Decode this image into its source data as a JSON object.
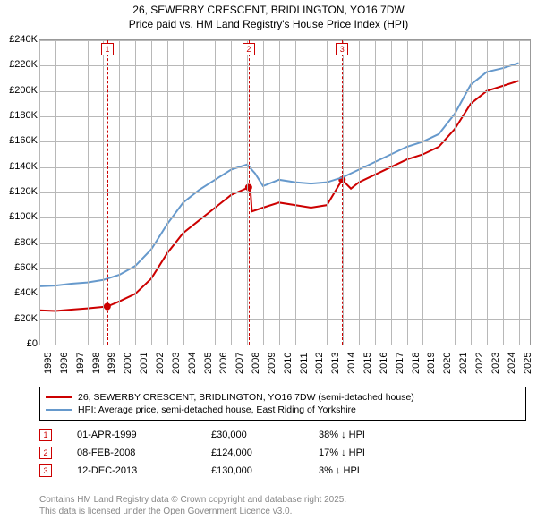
{
  "title": {
    "line1": "26, SEWERBY CRESCENT, BRIDLINGTON, YO16 7DW",
    "line2": "Price paid vs. HM Land Registry's House Price Index (HPI)",
    "fontsize": 12,
    "color": "#000000"
  },
  "chart": {
    "type": "line",
    "background_color": "#ffffff",
    "grid_color": "#b8b8b8",
    "ylim": [
      0,
      240000
    ],
    "ytick_step": 20000,
    "ytick_labels": [
      "£0",
      "£20K",
      "£40K",
      "£60K",
      "£80K",
      "£100K",
      "£120K",
      "£140K",
      "£160K",
      "£180K",
      "£200K",
      "£220K",
      "£240K"
    ],
    "x_years": [
      1995,
      1996,
      1997,
      1998,
      1999,
      2000,
      2001,
      2002,
      2003,
      2004,
      2005,
      2006,
      2007,
      2008,
      2009,
      2010,
      2011,
      2012,
      2013,
      2014,
      2015,
      2016,
      2017,
      2018,
      2019,
      2020,
      2021,
      2022,
      2023,
      2024,
      2025
    ],
    "series": [
      {
        "name": "price_paid",
        "label": "26, SEWERBY CRESCENT, BRIDLINGTON, YO16 7DW (semi-detached house)",
        "color": "#cc0000",
        "line_width": 2,
        "points": [
          [
            1995.0,
            27000
          ],
          [
            1996.0,
            26500
          ],
          [
            1997.0,
            27500
          ],
          [
            1998.0,
            28500
          ],
          [
            1999.25,
            30000
          ],
          [
            2000.0,
            34000
          ],
          [
            2001.0,
            40000
          ],
          [
            2002.0,
            52000
          ],
          [
            2003.0,
            72000
          ],
          [
            2004.0,
            88000
          ],
          [
            2005.0,
            98000
          ],
          [
            2006.0,
            108000
          ],
          [
            2007.0,
            118000
          ],
          [
            2008.1,
            124000
          ],
          [
            2008.2,
            124000
          ],
          [
            2008.3,
            105000
          ],
          [
            2009.0,
            108000
          ],
          [
            2010.0,
            112000
          ],
          [
            2011.0,
            110000
          ],
          [
            2012.0,
            108000
          ],
          [
            2013.0,
            110000
          ],
          [
            2013.95,
            130000
          ],
          [
            2014.5,
            123000
          ],
          [
            2015.0,
            128000
          ],
          [
            2016.0,
            134000
          ],
          [
            2017.0,
            140000
          ],
          [
            2018.0,
            146000
          ],
          [
            2019.0,
            150000
          ],
          [
            2020.0,
            156000
          ],
          [
            2021.0,
            170000
          ],
          [
            2022.0,
            190000
          ],
          [
            2023.0,
            200000
          ],
          [
            2024.0,
            204000
          ],
          [
            2025.0,
            208000
          ]
        ],
        "markers": [
          {
            "x": 1999.25,
            "y": 30000
          },
          {
            "x": 2008.1,
            "y": 124000
          },
          {
            "x": 2013.95,
            "y": 130000
          }
        ]
      },
      {
        "name": "hpi",
        "label": "HPI: Average price, semi-detached house, East Riding of Yorkshire",
        "color": "#6699cc",
        "line_width": 2,
        "points": [
          [
            1995.0,
            46000
          ],
          [
            1996.0,
            46500
          ],
          [
            1997.0,
            48000
          ],
          [
            1998.0,
            49000
          ],
          [
            1999.0,
            51000
          ],
          [
            2000.0,
            55000
          ],
          [
            2001.0,
            62000
          ],
          [
            2002.0,
            75000
          ],
          [
            2003.0,
            95000
          ],
          [
            2004.0,
            112000
          ],
          [
            2005.0,
            122000
          ],
          [
            2006.0,
            130000
          ],
          [
            2007.0,
            138000
          ],
          [
            2008.0,
            142000
          ],
          [
            2008.5,
            135000
          ],
          [
            2009.0,
            125000
          ],
          [
            2010.0,
            130000
          ],
          [
            2011.0,
            128000
          ],
          [
            2012.0,
            127000
          ],
          [
            2013.0,
            128000
          ],
          [
            2014.0,
            132000
          ],
          [
            2015.0,
            138000
          ],
          [
            2016.0,
            144000
          ],
          [
            2017.0,
            150000
          ],
          [
            2018.0,
            156000
          ],
          [
            2019.0,
            160000
          ],
          [
            2020.0,
            166000
          ],
          [
            2021.0,
            182000
          ],
          [
            2022.0,
            205000
          ],
          [
            2023.0,
            215000
          ],
          [
            2024.0,
            218000
          ],
          [
            2025.0,
            222000
          ]
        ]
      }
    ],
    "event_markers": [
      {
        "n": "1",
        "x": 1999.25
      },
      {
        "n": "2",
        "x": 2008.1
      },
      {
        "n": "3",
        "x": 2013.95
      }
    ]
  },
  "legend": {
    "items": [
      {
        "color": "#cc0000",
        "label": "26, SEWERBY CRESCENT, BRIDLINGTON, YO16 7DW (semi-detached house)"
      },
      {
        "color": "#6699cc",
        "label": "HPI: Average price, semi-detached house, East Riding of Yorkshire"
      }
    ]
  },
  "sales": [
    {
      "n": "1",
      "date": "01-APR-1999",
      "price": "£30,000",
      "delta": "38% ↓ HPI"
    },
    {
      "n": "2",
      "date": "08-FEB-2008",
      "price": "£124,000",
      "delta": "17% ↓ HPI"
    },
    {
      "n": "3",
      "date": "12-DEC-2013",
      "price": "£130,000",
      "delta": "3% ↓ HPI"
    }
  ],
  "footer": {
    "line1": "Contains HM Land Registry data © Crown copyright and database right 2025.",
    "line2": "This data is licensed under the Open Government Licence v3.0."
  }
}
